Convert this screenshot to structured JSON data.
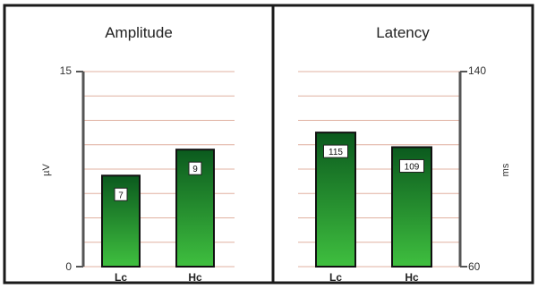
{
  "chart_data": [
    {
      "type": "bar",
      "title": "Amplitude",
      "ylabel": "µV",
      "categories": [
        "Lc",
        "Hc"
      ],
      "values": [
        7,
        9
      ],
      "value_labels": [
        "7",
        "9"
      ],
      "ylim": [
        0,
        15
      ],
      "yticks": [
        "0",
        "15"
      ],
      "axis_side": "left",
      "grid": true
    },
    {
      "type": "bar",
      "title": "Latency",
      "ylabel": "ms",
      "categories": [
        "Lc",
        "Hc"
      ],
      "values": [
        115,
        109
      ],
      "value_labels": [
        "115",
        "109"
      ],
      "ylim": [
        60,
        140
      ],
      "yticks": [
        "60",
        "140"
      ],
      "axis_side": "right",
      "grid": true
    }
  ],
  "colors": {
    "bar_top": "#0b5a1e",
    "bar_bottom": "#3fbf3f",
    "grid": "#e0b0a0",
    "axis": "#555555",
    "frame": "#1a1a1a"
  }
}
